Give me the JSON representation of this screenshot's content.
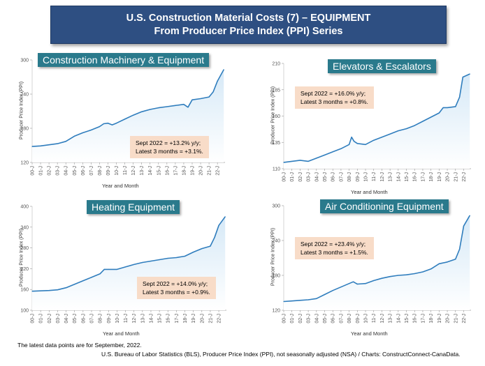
{
  "header": {
    "title_line1": "U.S. Construction Material Costs (7) – EQUIPMENT",
    "title_line2": "From Producer Price Index (PPI) Series"
  },
  "colors": {
    "line": "#2f7dbd",
    "fill_top": "#d6e9f7",
    "fill_bottom": "#ffffff",
    "banner": "#2e4f82",
    "title_box": "#2a7a8c",
    "annotation": "#f8dcc8"
  },
  "chart_data": [
    {
      "type": "area",
      "title": "Construction Machinery & Equipment",
      "ylabel": "Producer Price Index (PPI)",
      "xlabel": "Year and Month",
      "ylim": [
        120,
        300
      ],
      "yticks": [
        120,
        180,
        240,
        300
      ],
      "xticklabels": [
        "00-J",
        "01-J",
        "02-J",
        "03-J",
        "04-J",
        "05-J",
        "06-J",
        "07-J",
        "08-J",
        "09-J",
        "10-J",
        "11-J",
        "12-J",
        "13-J",
        "14-J",
        "15-J",
        "16-J",
        "17-J",
        "18-J",
        "19-J",
        "20-J",
        "21-J",
        "22-J"
      ],
      "annotation_line1": "Sept 2022 = +13.2% y/y;",
      "annotation_line2": "Latest 3 months = +3.1%.",
      "x": [
        2000,
        2001,
        2002,
        2003,
        2004,
        2005,
        2006,
        2007,
        2008,
        2008.5,
        2009,
        2009.5,
        2010,
        2011,
        2012,
        2013,
        2014,
        2015,
        2016,
        2017,
        2018,
        2018.5,
        2019,
        2020,
        2021,
        2021.5,
        2022,
        2022.75
      ],
      "y": [
        148,
        149,
        151,
        153,
        157,
        166,
        172,
        177,
        183,
        188,
        189,
        186,
        189,
        196,
        203,
        209,
        213,
        216,
        218,
        220,
        222,
        217,
        230,
        232,
        235,
        244,
        263,
        283
      ]
    },
    {
      "type": "area",
      "title": "Elevators & Escalators",
      "ylabel": "Producer Price Index (PPI)",
      "xlabel": "Year and Month",
      "ylim": [
        110,
        210
      ],
      "yticks": [
        110,
        135,
        160,
        185,
        210
      ],
      "xticklabels": [
        "00-J",
        "01-J",
        "02-J",
        "03-J",
        "04-J",
        "05-J",
        "06-J",
        "07-J",
        "08-J",
        "09-J",
        "10-J",
        "11-J",
        "12-J",
        "13-J",
        "14-J",
        "15-J",
        "16-J",
        "17-J",
        "18-J",
        "19-J",
        "20-J",
        "21-J",
        "22-J"
      ],
      "annotation_line1": "Sept 2022 = +16.0% y/y;",
      "annotation_line2": "Latest 3 months = +0.8%.",
      "x": [
        2000,
        2001,
        2002,
        2003,
        2004,
        2005,
        2006,
        2007,
        2008,
        2008.3,
        2008.6,
        2009,
        2010,
        2011,
        2012,
        2013,
        2014,
        2015,
        2016,
        2017,
        2018,
        2019,
        2019.5,
        2020,
        2021,
        2021.5,
        2021.9,
        2022.75
      ],
      "y": [
        116,
        117,
        118,
        117,
        120,
        123,
        126,
        129,
        133,
        140,
        136,
        134,
        133,
        137,
        140,
        143,
        146,
        148,
        151,
        155,
        159,
        163,
        168,
        168,
        169,
        178,
        197,
        200
      ]
    },
    {
      "type": "area",
      "title": "Heating Equipment",
      "ylabel": "Producer Price Index (PPI)",
      "xlabel": "Year and Month",
      "ylim": [
        100,
        400
      ],
      "yticks": [
        100,
        160,
        220,
        280,
        340,
        400
      ],
      "xticklabels": [
        "00-J",
        "01-J",
        "02-J",
        "03-J",
        "04-J",
        "05-J",
        "06-J",
        "07-J",
        "08-J",
        "09-J",
        "10-J",
        "11-J",
        "12-J",
        "13-J",
        "14-J",
        "15-J",
        "16-J",
        "17-J",
        "18-J",
        "19-J",
        "20-J",
        "21-J",
        "22-J"
      ],
      "annotation_line1": "Sept 2022 = +14.0% y/y;",
      "annotation_line2": "Latest 3 months = +0.9%.",
      "x": [
        2000,
        2001,
        2002,
        2003,
        2004,
        2005,
        2006,
        2007,
        2008,
        2008.5,
        2009,
        2010,
        2011,
        2012,
        2013,
        2014,
        2015,
        2016,
        2017,
        2018,
        2019,
        2020,
        2021,
        2021.5,
        2022,
        2022.75
      ],
      "y": [
        155,
        156,
        157,
        159,
        165,
        175,
        185,
        195,
        205,
        218,
        218,
        218,
        225,
        232,
        238,
        242,
        246,
        250,
        252,
        256,
        268,
        278,
        285,
        310,
        345,
        370
      ]
    },
    {
      "type": "area",
      "title": "Air Conditioning Equipment",
      "ylabel": "Producer Price Index (PPI)",
      "xlabel": "Year and Month",
      "ylim": [
        120,
        300
      ],
      "yticks": [
        120,
        180,
        240,
        300
      ],
      "xticklabels": [
        "00-J",
        "01-J",
        "02-J",
        "03-J",
        "04-J",
        "05-J",
        "06-J",
        "07-J",
        "08-J",
        "09-J",
        "10-J",
        "11-J",
        "12-J",
        "13-J",
        "14-J",
        "15-J",
        "16-J",
        "17-J",
        "18-J",
        "19-J",
        "20-J",
        "21-J",
        "22-J"
      ],
      "annotation_line1": "Sept 2022 = +23.4% y/y;",
      "annotation_line2": "Latest 3 months = +1.5%.",
      "x": [
        2000,
        2001,
        2002,
        2003,
        2004,
        2005,
        2006,
        2007,
        2008,
        2008.5,
        2009,
        2010,
        2011,
        2012,
        2013,
        2014,
        2015,
        2016,
        2017,
        2018,
        2019,
        2020,
        2021,
        2021.5,
        2022,
        2022.75
      ],
      "y": [
        135,
        136,
        137,
        138,
        140,
        147,
        154,
        160,
        166,
        169,
        165,
        166,
        171,
        175,
        178,
        180,
        181,
        183,
        186,
        191,
        200,
        203,
        208,
        225,
        265,
        283
      ]
    }
  ],
  "footer": {
    "note": "The latest data points are for September, 2022.",
    "source": "U.S. Bureau of Labor Statistics (BLS), Producer Price Index (PPI), not seasonally adjusted (NSA) / Charts: ConstructConnect-CanaData."
  }
}
